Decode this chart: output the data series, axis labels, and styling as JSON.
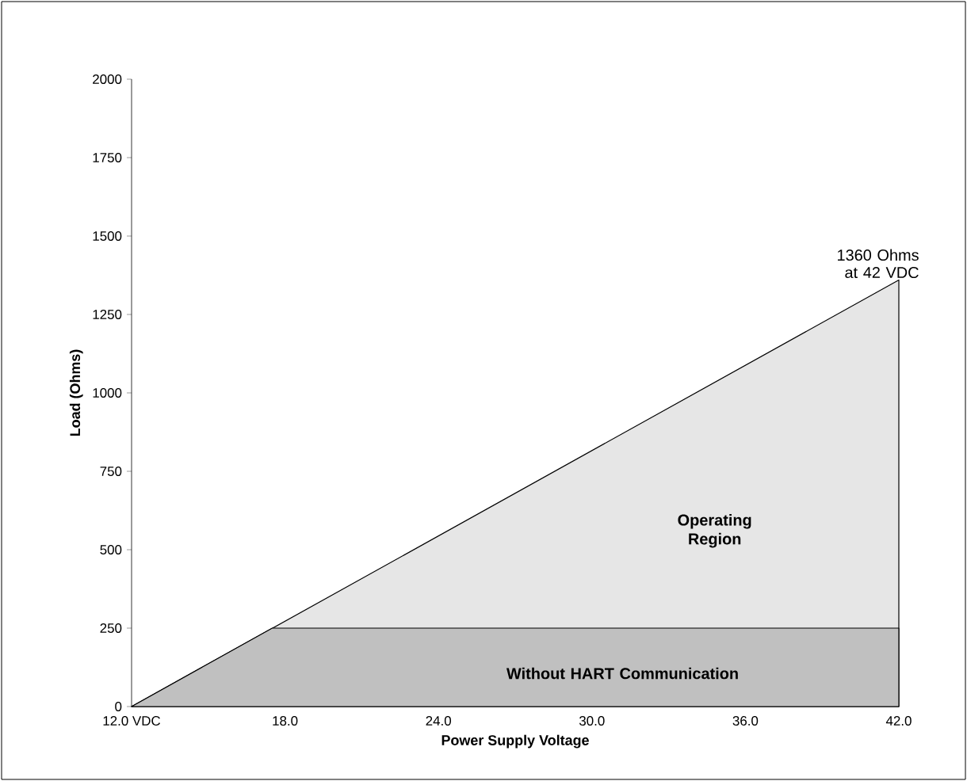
{
  "chart_data": {
    "type": "area",
    "xlabel": "Power Supply Voltage",
    "ylabel": "Load (Ohms)",
    "xlim": [
      12,
      42
    ],
    "ylim": [
      0,
      2000
    ],
    "xticks": [
      {
        "value": 12,
        "label": "12.0 VDC"
      },
      {
        "value": 18,
        "label": "18.0"
      },
      {
        "value": 24,
        "label": "24.0"
      },
      {
        "value": 30,
        "label": "30.0"
      },
      {
        "value": 36,
        "label": "36.0"
      },
      {
        "value": 42,
        "label": "42.0"
      }
    ],
    "yticks": [
      0,
      250,
      500,
      750,
      1000,
      1250,
      1500,
      1750,
      2000
    ],
    "series": [
      {
        "color": "#e6e6e6",
        "x": [
          12,
          42
        ],
        "values": [
          0,
          1360
        ]
      },
      {
        "color": "#c0c0c0",
        "x": [
          12,
          17.5,
          42
        ],
        "values": [
          0,
          250,
          250
        ]
      }
    ],
    "annotations": [
      {
        "text": "1360 Ohms at 42 VDC",
        "x": 42,
        "y": 1360
      },
      "Operating Region",
      "Without HART Communication"
    ]
  }
}
